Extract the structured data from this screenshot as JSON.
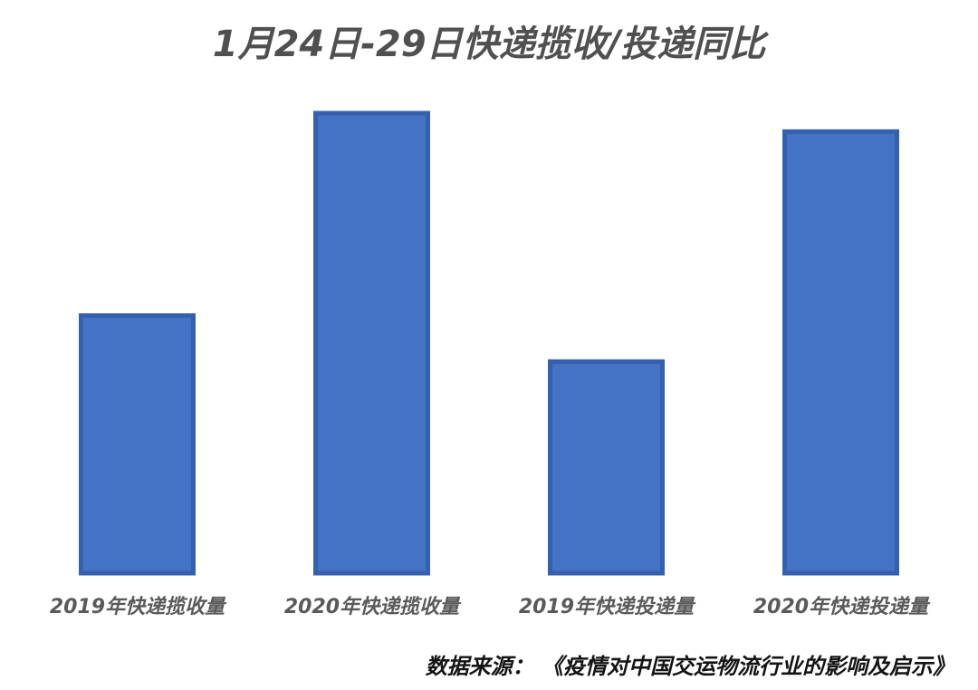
{
  "chart_data": {
    "type": "bar",
    "title": "1月24日-29日快递揽收/投递同比",
    "categories": [
      "2019年快递揽收量",
      "2020年快递揽收量",
      "2019年快递投递量",
      "2020年快递投递量"
    ],
    "values": [
      56,
      100,
      46,
      96
    ],
    "ylim": [
      0,
      100
    ],
    "xlabel": "",
    "ylabel": "",
    "grid": false,
    "legend": "none",
    "bar_fill": "#4472c4",
    "bar_stroke": "#3560ad"
  },
  "source": "数据来源：  《疫情对中国交运物流行业的影响及启示》"
}
